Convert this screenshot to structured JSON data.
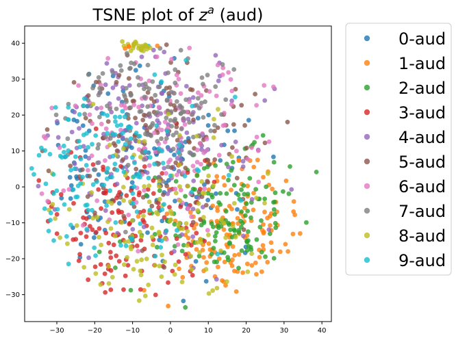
{
  "chart_data": {
    "type": "scatter",
    "title": {
      "prefix": "TSNE plot of ",
      "var": "z",
      "sup": "a",
      "suffix": " (aud)"
    },
    "xlabel": "",
    "ylabel": "",
    "xlim": [
      -38.5,
      42.5
    ],
    "ylim": [
      -37.5,
      44.8
    ],
    "xticks": [
      -30,
      -20,
      -10,
      0,
      10,
      20,
      30,
      40
    ],
    "yticks": [
      -30,
      -20,
      -10,
      0,
      10,
      20,
      30,
      40
    ],
    "grid": false,
    "legend_position": "outside-right",
    "point_opacity": 0.8,
    "series": [
      {
        "name": "0-aud",
        "color": "#1f77b4"
      },
      {
        "name": "1-aud",
        "color": "#ff7f0e"
      },
      {
        "name": "2-aud",
        "color": "#2ca02c"
      },
      {
        "name": "3-aud",
        "color": "#d62728"
      },
      {
        "name": "4-aud",
        "color": "#9467bd"
      },
      {
        "name": "5-aud",
        "color": "#8c564b"
      },
      {
        "name": "6-aud",
        "color": "#e377c2"
      },
      {
        "name": "7-aud",
        "color": "#7f7f7f"
      },
      {
        "name": "8-aud",
        "color": "#bcbd22"
      },
      {
        "name": "9-aud",
        "color": "#17becf"
      }
    ]
  }
}
